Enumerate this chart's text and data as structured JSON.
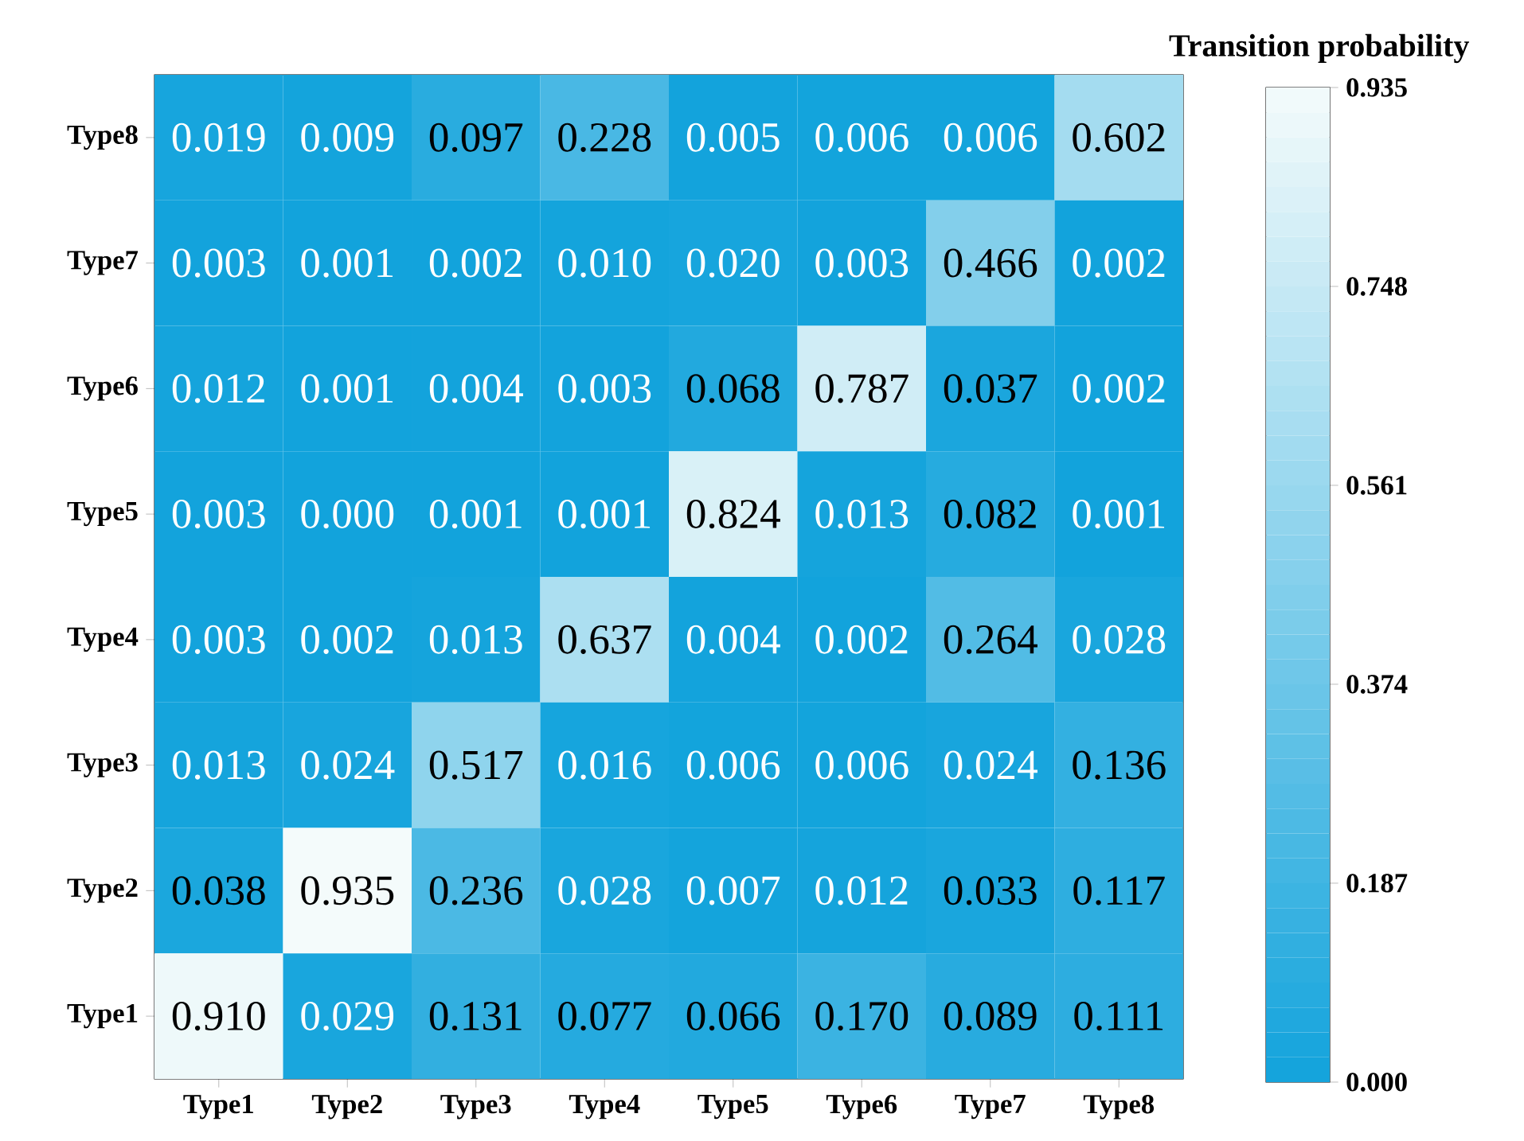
{
  "chart_data": {
    "type": "heatmap",
    "clabel": "Transition probability",
    "categories": [
      "Type1",
      "Type2",
      "Type3",
      "Type4",
      "Type5",
      "Type6",
      "Type7",
      "Type8"
    ],
    "y_categories": [
      "Type8",
      "Type7",
      "Type6",
      "Type5",
      "Type4",
      "Type3",
      "Type2",
      "Type1"
    ],
    "cells": [
      [
        0.019,
        0.009,
        0.097,
        0.228,
        0.005,
        0.006,
        0.006,
        0.602
      ],
      [
        0.003,
        0.001,
        0.002,
        0.01,
        0.02,
        0.003,
        0.466,
        0.002
      ],
      [
        0.012,
        0.001,
        0.004,
        0.003,
        0.068,
        0.787,
        0.037,
        0.002
      ],
      [
        0.003,
        0.0,
        0.001,
        0.001,
        0.824,
        0.013,
        0.082,
        0.001
      ],
      [
        0.003,
        0.002,
        0.013,
        0.637,
        0.004,
        0.002,
        0.264,
        0.028
      ],
      [
        0.013,
        0.024,
        0.517,
        0.016,
        0.006,
        0.006,
        0.024,
        0.136
      ],
      [
        0.038,
        0.935,
        0.236,
        0.028,
        0.007,
        0.012,
        0.033,
        0.117
      ],
      [
        0.91,
        0.029,
        0.131,
        0.077,
        0.066,
        0.17,
        0.089,
        0.111
      ]
    ],
    "cell_labels": [
      [
        "0.019",
        "0.009",
        "0.097",
        "0.228",
        "0.005",
        "0.006",
        "0.006",
        "0.602"
      ],
      [
        "0.003",
        "0.001",
        "0.002",
        "0.010",
        "0.020",
        "0.003",
        "0.466",
        "0.002"
      ],
      [
        "0.012",
        "0.001",
        "0.004",
        "0.003",
        "0.068",
        "0.787",
        "0.037",
        "0.002"
      ],
      [
        "0.003",
        "0.000",
        "0.001",
        "0.001",
        "0.824",
        "0.013",
        "0.082",
        "0.001"
      ],
      [
        "0.003",
        "0.002",
        "0.013",
        "0.637",
        "0.004",
        "0.002",
        "0.264",
        "0.028"
      ],
      [
        "0.013",
        "0.024",
        "0.517",
        "0.016",
        "0.006",
        "0.006",
        "0.024",
        "0.136"
      ],
      [
        "0.038",
        "0.935",
        "0.236",
        "0.028",
        "0.007",
        "0.012",
        "0.033",
        "0.117"
      ],
      [
        "0.910",
        "0.029",
        "0.131",
        "0.077",
        "0.066",
        "0.170",
        "0.089",
        "0.111"
      ]
    ],
    "clim": [
      0,
      0.935
    ],
    "cticks": [
      {
        "value": 0,
        "label": "0.000"
      },
      {
        "value": 0.187,
        "label": "0.187"
      },
      {
        "value": 0.374,
        "label": "0.374"
      },
      {
        "value": 0.561,
        "label": "0.561"
      },
      {
        "value": 0.748,
        "label": "0.748"
      },
      {
        "value": 0.935,
        "label": "0.935"
      }
    ]
  }
}
